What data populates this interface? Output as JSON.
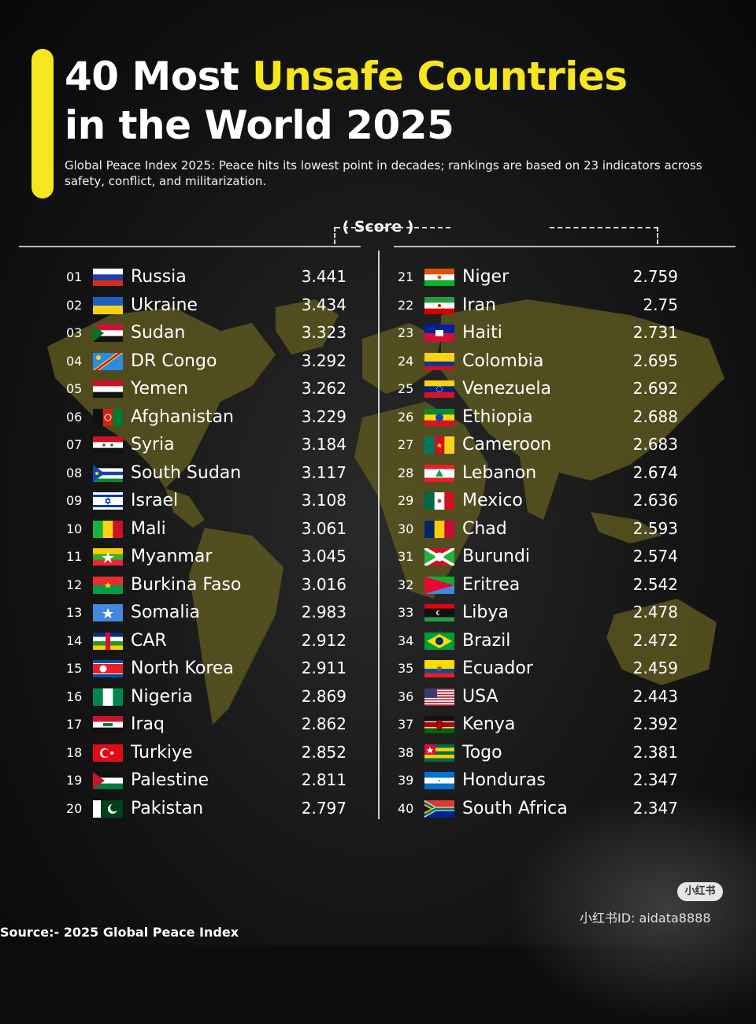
{
  "title": {
    "line1": "40 Most ",
    "highlight": "Unsafe Countries",
    "line2": "in the World 2025"
  },
  "subtitle": "Global Peace Index 2025: Peace hits its lowest point in decades; rankings are based on 23 indicators across safety, conflict, and militarization.",
  "score_header": "( Score )",
  "countries": [
    {
      "rank": "01",
      "name": "Russia",
      "score": "3.441",
      "flag": "russia"
    },
    {
      "rank": "02",
      "name": "Ukraine",
      "score": "3.434",
      "flag": "ukraine"
    },
    {
      "rank": "03",
      "name": "Sudan",
      "score": "3.323",
      "flag": "sudan"
    },
    {
      "rank": "04",
      "name": "DR Congo",
      "score": "3.292",
      "flag": "dr-congo"
    },
    {
      "rank": "05",
      "name": "Yemen",
      "score": "3.262",
      "flag": "yemen"
    },
    {
      "rank": "06",
      "name": "Afghanistan",
      "score": "3.229",
      "flag": "afghanistan"
    },
    {
      "rank": "07",
      "name": "Syria",
      "score": "3.184",
      "flag": "syria"
    },
    {
      "rank": "08",
      "name": "South Sudan",
      "score": "3.117",
      "flag": "south-sudan"
    },
    {
      "rank": "09",
      "name": "Israel",
      "score": "3.108",
      "flag": "israel"
    },
    {
      "rank": "10",
      "name": "Mali",
      "score": "3.061",
      "flag": "mali"
    },
    {
      "rank": "11",
      "name": "Myanmar",
      "score": "3.045",
      "flag": "myanmar"
    },
    {
      "rank": "12",
      "name": "Burkina Faso",
      "score": "3.016",
      "flag": "burkina-faso"
    },
    {
      "rank": "13",
      "name": "Somalia",
      "score": "2.983",
      "flag": "somalia"
    },
    {
      "rank": "14",
      "name": "CAR",
      "score": "2.912",
      "flag": "car"
    },
    {
      "rank": "15",
      "name": "North Korea",
      "score": "2.911",
      "flag": "north-korea"
    },
    {
      "rank": "16",
      "name": "Nigeria",
      "score": "2.869",
      "flag": "nigeria"
    },
    {
      "rank": "17",
      "name": "Iraq",
      "score": "2.862",
      "flag": "iraq"
    },
    {
      "rank": "18",
      "name": "Turkiye",
      "score": "2.852",
      "flag": "turkiye"
    },
    {
      "rank": "19",
      "name": "Palestine",
      "score": "2.811",
      "flag": "palestine"
    },
    {
      "rank": "20",
      "name": "Pakistan",
      "score": "2.797",
      "flag": "pakistan"
    },
    {
      "rank": "21",
      "name": "Niger",
      "score": "2.759",
      "flag": "niger"
    },
    {
      "rank": "22",
      "name": "Iran",
      "score": "2.75",
      "flag": "iran"
    },
    {
      "rank": "23",
      "name": "Haiti",
      "score": "2.731",
      "flag": "haiti"
    },
    {
      "rank": "24",
      "name": "Colombia",
      "score": "2.695",
      "flag": "colombia"
    },
    {
      "rank": "25",
      "name": "Venezuela",
      "score": "2.692",
      "flag": "venezuela"
    },
    {
      "rank": "26",
      "name": "Ethiopia",
      "score": "2.688",
      "flag": "ethiopia"
    },
    {
      "rank": "27",
      "name": "Cameroon",
      "score": "2.683",
      "flag": "cameroon"
    },
    {
      "rank": "28",
      "name": "Lebanon",
      "score": "2.674",
      "flag": "lebanon"
    },
    {
      "rank": "29",
      "name": "Mexico",
      "score": "2.636",
      "flag": "mexico"
    },
    {
      "rank": "30",
      "name": "Chad",
      "score": "2.593",
      "flag": "chad"
    },
    {
      "rank": "31",
      "name": "Burundi",
      "score": "2.574",
      "flag": "burundi"
    },
    {
      "rank": "32",
      "name": "Eritrea",
      "score": "2.542",
      "flag": "eritrea"
    },
    {
      "rank": "33",
      "name": "Libya",
      "score": "2.478",
      "flag": "libya"
    },
    {
      "rank": "34",
      "name": "Brazil",
      "score": "2.472",
      "flag": "brazil"
    },
    {
      "rank": "35",
      "name": "Ecuador",
      "score": "2.459",
      "flag": "ecuador"
    },
    {
      "rank": "36",
      "name": "USA",
      "score": "2.443",
      "flag": "usa"
    },
    {
      "rank": "37",
      "name": "Kenya",
      "score": "2.392",
      "flag": "kenya"
    },
    {
      "rank": "38",
      "name": "Togo",
      "score": "2.381",
      "flag": "togo"
    },
    {
      "rank": "39",
      "name": "Honduras",
      "score": "2.347",
      "flag": "honduras"
    },
    {
      "rank": "40",
      "name": "South Africa",
      "score": "2.347",
      "flag": "south-africa"
    }
  ],
  "source": "Source:- 2025 Global Peace Index",
  "watermark": {
    "badge": "小红书",
    "id": "小红书ID: aidata8888"
  },
  "colors": {
    "accent": "#f5e61e",
    "background": "#0d0d0d",
    "map": "#5e5a1e"
  }
}
